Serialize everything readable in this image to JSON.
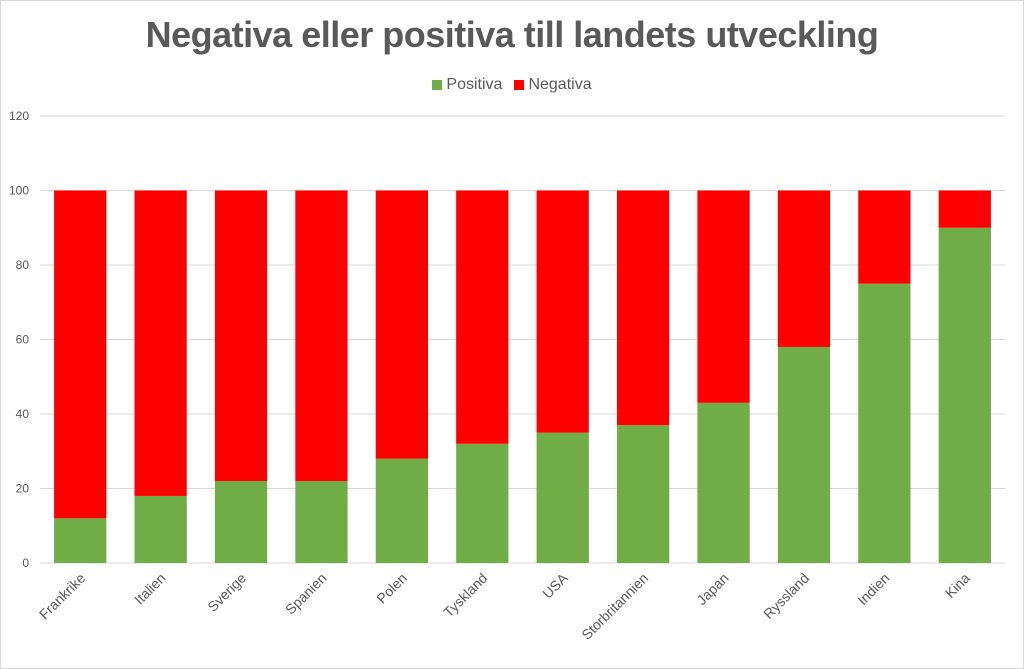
{
  "chart_data": {
    "type": "bar",
    "stacked": true,
    "title": "Negativa eller positiva till landets utveckling",
    "xlabel": "",
    "ylabel": "",
    "ylim": [
      0,
      120
    ],
    "yticks": [
      0,
      20,
      40,
      60,
      80,
      100,
      120
    ],
    "grid": true,
    "legend_position": "top",
    "categories": [
      "Frankrike",
      "Italien",
      "Sverige",
      "Spanien",
      "Polen",
      "Tyskland",
      "USA",
      "Storbritannien",
      "Japan",
      "Ryssland",
      "Indien",
      "Kina"
    ],
    "series": [
      {
        "name": "Positiva",
        "color": "#70ad47",
        "values": [
          12,
          18,
          22,
          22,
          28,
          32,
          35,
          37,
          43,
          58,
          75,
          90
        ]
      },
      {
        "name": "Negativa",
        "color": "#ff0000",
        "values": [
          88,
          82,
          78,
          78,
          72,
          68,
          65,
          63,
          57,
          42,
          25,
          10
        ]
      }
    ]
  }
}
